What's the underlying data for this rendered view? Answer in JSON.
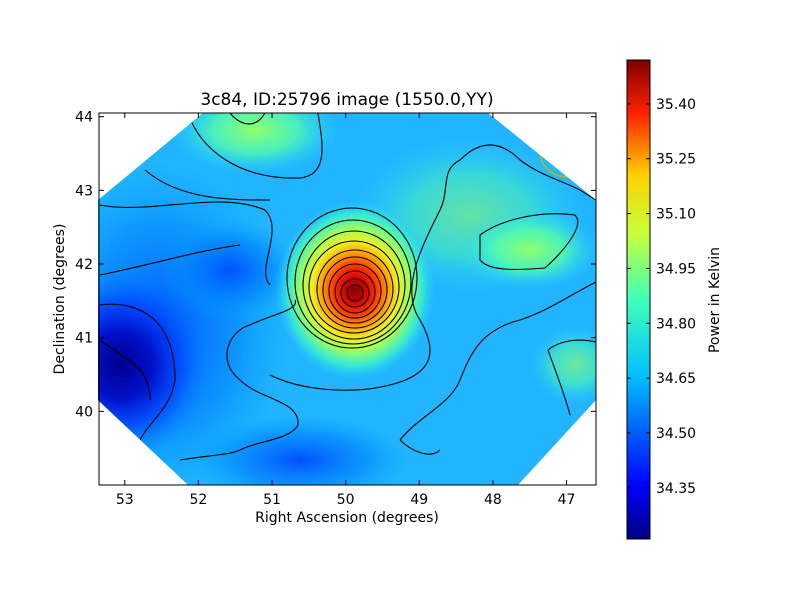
{
  "chart_data": {
    "type": "heatmap",
    "title": "3c84, ID:25796 image (1550.0,YY)",
    "xlabel": "Right Ascension (degrees)",
    "ylabel": "Declination (degrees)",
    "xlim": [
      53.35,
      46.6
    ],
    "ylim": [
      39.0,
      44.05
    ],
    "x_ticks": [
      {
        "value": 53,
        "label": "53"
      },
      {
        "value": 52,
        "label": "52"
      },
      {
        "value": 51,
        "label": "51"
      },
      {
        "value": 50,
        "label": "50"
      },
      {
        "value": 49,
        "label": "49"
      },
      {
        "value": 48,
        "label": "48"
      },
      {
        "value": 47,
        "label": "47"
      }
    ],
    "y_ticks": [
      {
        "value": 40,
        "label": "40"
      },
      {
        "value": 41,
        "label": "41"
      },
      {
        "value": 42,
        "label": "42"
      },
      {
        "value": 43,
        "label": "43"
      },
      {
        "value": 44,
        "label": "44"
      }
    ],
    "colorbar": {
      "label": "Power in Kelvin",
      "range": [
        34.21,
        35.52
      ],
      "colormap": "jet",
      "ticks": [
        {
          "value": 34.35,
          "label": "34.35"
        },
        {
          "value": 34.5,
          "label": "34.50"
        },
        {
          "value": 34.65,
          "label": "34.65"
        },
        {
          "value": 34.8,
          "label": "34.80"
        },
        {
          "value": 34.95,
          "label": "34.95"
        },
        {
          "value": 35.1,
          "label": "35.10"
        },
        {
          "value": 35.25,
          "label": "35.25"
        },
        {
          "value": 35.4,
          "label": "35.40"
        }
      ]
    },
    "background_level": 34.62,
    "features": [
      {
        "kind": "peak",
        "ra": 49.85,
        "dec": 41.6,
        "peak_value": 35.48
      },
      {
        "kind": "warm-patch",
        "ra": 47.65,
        "dec": 42.1,
        "peak_value": 34.85
      },
      {
        "kind": "warm-patch",
        "ra": 51.1,
        "dec": 43.85,
        "peak_value": 34.83
      },
      {
        "kind": "cool-region",
        "ra": 53.2,
        "dec": 40.6,
        "min_value": 34.22
      },
      {
        "kind": "cool-region",
        "ra": 52.5,
        "dec": 42.0,
        "min_value": 34.42
      }
    ],
    "beam_marker": {
      "ra": 47.0,
      "dec": 43.55,
      "shape": "circle",
      "color": "#c8b400"
    },
    "contours": true,
    "grid": false
  }
}
